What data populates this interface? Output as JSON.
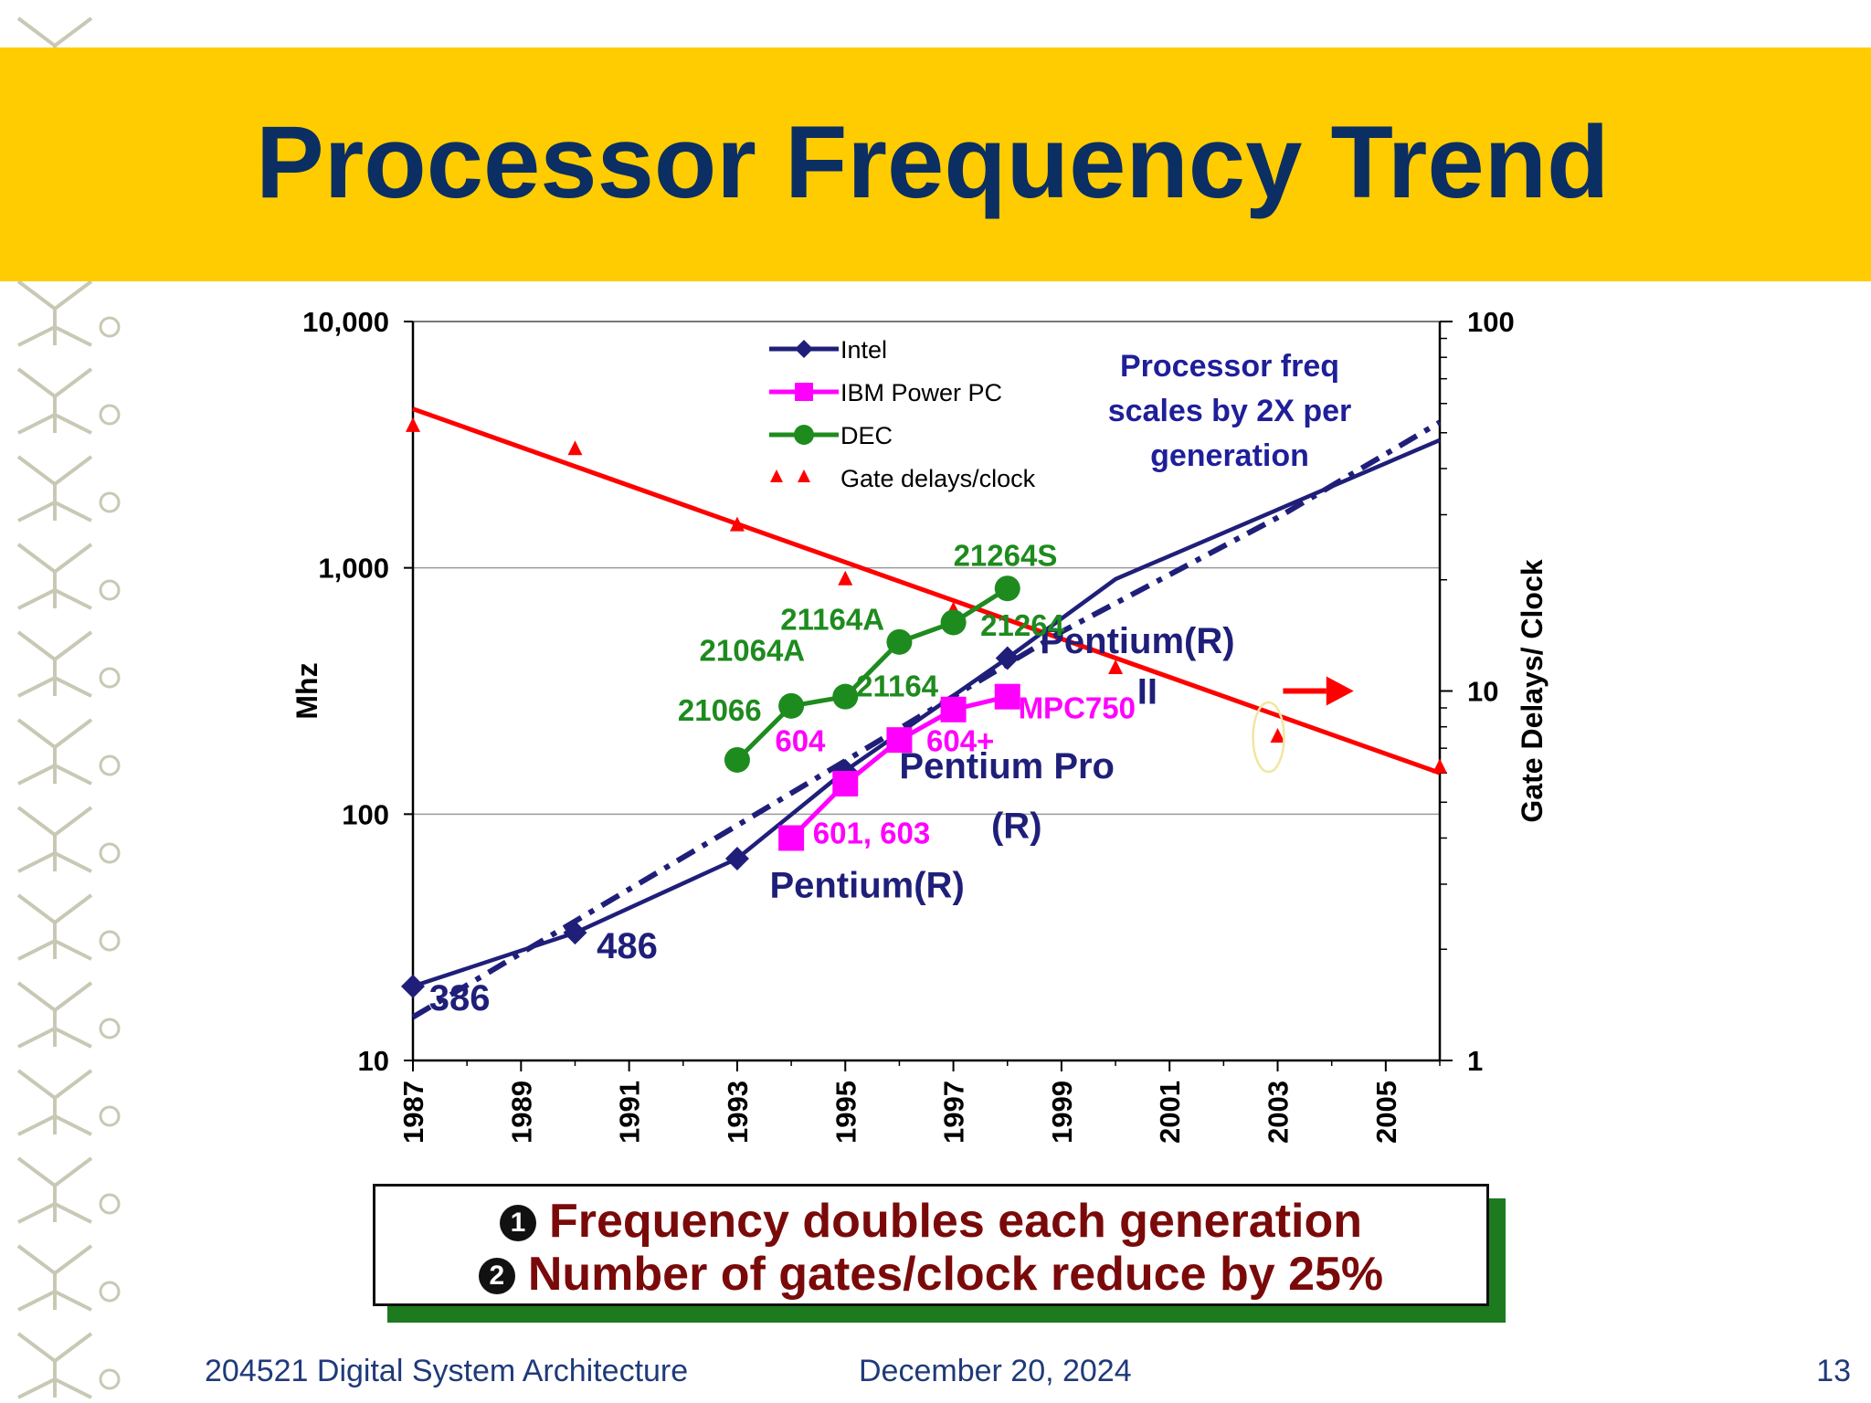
{
  "slide": {
    "title": "Processor Frequency Trend",
    "footer": {
      "course": "204521 Digital System Architecture",
      "date": "December 20, 2024",
      "page": "13"
    },
    "callout": {
      "line1_marker": "1",
      "line1": "Frequency doubles each generation",
      "line2_marker": "2",
      "line2": "Number of gates/clock reduce by 25%"
    }
  },
  "colors": {
    "banner": "#FECC00",
    "title": "#0B2E63",
    "intel": "#1F1F7A",
    "ibm": "#FF00FF",
    "dec": "#1E8B1E",
    "gate": "#FF0000",
    "callout_text": "#7A0A0A",
    "callout_shadow": "#1E7A1E"
  },
  "chart_data": {
    "type": "line",
    "x_range": [
      1987,
      2006
    ],
    "x_ticks": [
      "1987",
      "1989",
      "1991",
      "1993",
      "1995",
      "1997",
      "1999",
      "2001",
      "2003",
      "2005"
    ],
    "y_left": {
      "label": "Mhz",
      "scale": "log",
      "range": [
        10,
        10000
      ],
      "ticks": [
        "10",
        "100",
        "1,000",
        "10,000"
      ]
    },
    "y_right": {
      "label": "Gate Delays/ Clock",
      "scale": "log",
      "range": [
        1,
        100
      ],
      "ticks": [
        "1",
        "10",
        "100"
      ]
    },
    "grid": "horizontal",
    "legend_position": "top-center",
    "annotation": "Processor freq scales by 2X per generation",
    "series": [
      {
        "name": "Intel",
        "axis": "left",
        "marker": "diamond",
        "points": [
          [
            1987,
            20
          ],
          [
            1990,
            33
          ],
          [
            1993,
            66
          ],
          [
            1995,
            150
          ],
          [
            1998,
            430
          ]
        ],
        "trend_solid": [
          [
            1987,
            20
          ],
          [
            1990,
            33
          ],
          [
            1993,
            66
          ],
          [
            1995,
            150
          ],
          [
            1998,
            430
          ],
          [
            2000,
            900
          ],
          [
            2006,
            3300
          ]
        ],
        "trend_dashed": [
          [
            1987,
            15
          ],
          [
            1993,
            90
          ],
          [
            1999,
            550
          ],
          [
            2003,
            1600
          ],
          [
            2006,
            3900
          ]
        ]
      },
      {
        "name": "IBM Power PC",
        "axis": "left",
        "marker": "square",
        "points": [
          [
            1994,
            80
          ],
          [
            1995,
            133
          ],
          [
            1996,
            200
          ],
          [
            1997,
            266
          ],
          [
            1998,
            300
          ]
        ]
      },
      {
        "name": "DEC",
        "axis": "left",
        "marker": "circle",
        "points": [
          [
            1993,
            166
          ],
          [
            1994,
            275
          ],
          [
            1995,
            300
          ],
          [
            1996,
            500
          ],
          [
            1997,
            600
          ],
          [
            1998,
            825
          ]
        ]
      },
      {
        "name": "Gate delays/clock",
        "axis": "right",
        "marker": "triangle",
        "points": [
          [
            1987,
            52
          ],
          [
            1990,
            45
          ],
          [
            1993,
            28
          ],
          [
            1995,
            20
          ],
          [
            1997,
            16.5
          ],
          [
            2000,
            11.5
          ],
          [
            2003,
            7.5
          ],
          [
            2006,
            6.2
          ]
        ],
        "trend": [
          [
            1987,
            58
          ],
          [
            2006,
            6.0
          ]
        ]
      }
    ],
    "point_labels": [
      {
        "text": "386",
        "x": 1987.3,
        "y": 16,
        "color": "intel"
      },
      {
        "text": "486",
        "x": 1990.4,
        "y": 26,
        "color": "intel"
      },
      {
        "text": "Pentium(R)",
        "x": 1993.6,
        "y": 46,
        "color": "intel"
      },
      {
        "text": "Pentium Pro",
        "x": 1996.0,
        "y": 140,
        "color": "intel"
      },
      {
        "text": "(R)",
        "x": 1997.7,
        "y": 80,
        "color": "intel"
      },
      {
        "text": "Pentium(R)",
        "x": 1998.6,
        "y": 450,
        "color": "intel"
      },
      {
        "text": "II",
        "x": 2000.4,
        "y": 280,
        "color": "intel"
      },
      {
        "text": "601, 603",
        "x": 1994.4,
        "y": 76,
        "color": "ibm"
      },
      {
        "text": "604",
        "x": 1993.7,
        "y": 180,
        "color": "ibm"
      },
      {
        "text": "604+",
        "x": 1996.5,
        "y": 180,
        "color": "ibm"
      },
      {
        "text": "MPC750",
        "x": 1998.2,
        "y": 245,
        "color": "ibm"
      },
      {
        "text": "21066",
        "x": 1991.9,
        "y": 240,
        "color": "dec"
      },
      {
        "text": "21064A",
        "x": 1992.3,
        "y": 420,
        "color": "dec"
      },
      {
        "text": "21164A",
        "x": 1993.8,
        "y": 560,
        "color": "dec"
      },
      {
        "text": "21164",
        "x": 1995.2,
        "y": 300,
        "color": "dec"
      },
      {
        "text": "21264",
        "x": 1997.5,
        "y": 530,
        "color": "dec"
      },
      {
        "text": "21264S",
        "x": 1997.0,
        "y": 1020,
        "color": "dec"
      }
    ]
  }
}
